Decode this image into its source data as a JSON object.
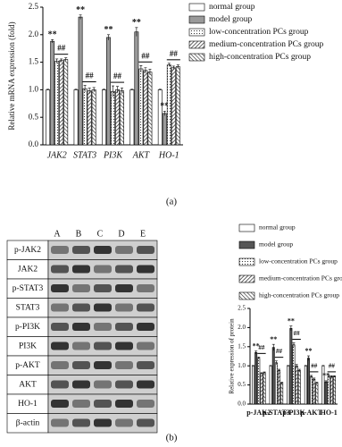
{
  "chart_data": [
    {
      "type": "bar",
      "y_label": "Relative mRNA expression (fold)",
      "categories": [
        "JAK2",
        "STAT3",
        "PI3K",
        "AKT",
        "HO-1"
      ],
      "category_style": "italic",
      "ylim": [
        0,
        2.5
      ],
      "yticks": [
        {
          "value": 0,
          "label": "0.0"
        },
        0.5,
        {
          "value": 1,
          "label": "1.0"
        },
        1.5,
        {
          "value": 2,
          "label": "2.0"
        },
        2.5
      ],
      "series": [
        {
          "name": "normal group",
          "color": "#ffffff",
          "pattern": "solid",
          "values": [
            1,
            1,
            1,
            1,
            1
          ],
          "errors": [
            0.01,
            0.01,
            0.01,
            0.01,
            0.01
          ]
        },
        {
          "name": "model group",
          "color": "#9a9a9a",
          "pattern": "solid",
          "values": [
            1.88,
            2.32,
            1.95,
            2.05,
            0.57
          ],
          "errors": [
            0.03,
            0.04,
            0.05,
            0.08,
            0.04
          ],
          "significance": [
            "**",
            "**",
            "**",
            "**",
            "**"
          ]
        },
        {
          "name": "low-concentration PCs group",
          "color": "#ffffff",
          "pattern": "dots",
          "values": [
            1.52,
            1.02,
            0.97,
            1.38,
            1.45
          ],
          "errors": [
            0.04,
            0.06,
            0.1,
            0.06,
            0.03
          ]
        },
        {
          "name": "medium-concentration PCs group",
          "color": "#ffffff",
          "pattern": "hatch",
          "values": [
            1.53,
            0.98,
            1.0,
            1.35,
            1.4
          ],
          "errors": [
            0.03,
            0.05,
            0.06,
            0.05,
            0.03
          ]
        },
        {
          "name": "high-concentration PCs group",
          "color": "#ffffff",
          "pattern": "crosshatch",
          "values": [
            1.55,
            1.0,
            0.98,
            1.32,
            1.42
          ],
          "errors": [
            0.03,
            0.04,
            0.05,
            0.05,
            0.03
          ]
        }
      ],
      "group_annotations": [
        "##",
        "##",
        "##",
        "##",
        "##"
      ]
    },
    {
      "type": "bar",
      "y_label": "Relative expression of protein",
      "categories": [
        "p-JAK2",
        "p-STAT3",
        "p-PI3K",
        "p-AKT",
        "HO-1"
      ],
      "category_style": "bold",
      "ylim": [
        0,
        2.5
      ],
      "yticks": [
        {
          "value": 0,
          "label": "0.0"
        },
        0.5,
        {
          "value": 1,
          "label": "1.0"
        },
        1.5,
        {
          "value": 2,
          "label": "2.0"
        },
        2.5
      ],
      "series": [
        {
          "name": "normal group",
          "color": "#ffffff",
          "pattern": "solid",
          "values": [
            1,
            1,
            1,
            1,
            1
          ],
          "errors": [
            0.01,
            0.01,
            0.01,
            0.01,
            0.01
          ]
        },
        {
          "name": "model group",
          "color": "#555555",
          "pattern": "solid",
          "values": [
            1.35,
            1.48,
            1.98,
            1.2,
            0.58
          ],
          "errors": [
            0.04,
            0.08,
            0.06,
            0.06,
            0.03
          ],
          "significance": [
            "**",
            "**",
            "**",
            "**",
            "**"
          ]
        },
        {
          "name": "low-concentration PCs group",
          "color": "#ffffff",
          "pattern": "dots",
          "values": [
            1.2,
            1.08,
            1.55,
            0.72,
            0.72
          ],
          "errors": [
            0.03,
            0.05,
            0.05,
            0.03,
            0.03
          ]
        },
        {
          "name": "medium-concentration PCs group",
          "color": "#ffffff",
          "pattern": "hatch",
          "values": [
            0.8,
            0.88,
            1.0,
            0.65,
            0.72
          ],
          "errors": [
            0.02,
            0.03,
            0.04,
            0.03,
            0.02
          ]
        },
        {
          "name": "high-concentration PCs group",
          "color": "#ffffff",
          "pattern": "crosshatch",
          "values": [
            0.82,
            0.55,
            0.88,
            0.55,
            0.72
          ],
          "errors": [
            0.02,
            0.02,
            0.03,
            0.02,
            0.02
          ]
        }
      ],
      "group_annotations": [
        "##",
        "##",
        "##",
        "##",
        "##"
      ]
    }
  ],
  "blot": {
    "lanes": [
      "A",
      "B",
      "C",
      "D",
      "E"
    ],
    "rows": [
      "p-JAK2",
      "JAK2",
      "p-STAT3",
      "STAT3",
      "p-PI3K",
      "PI3K",
      "p-AKT",
      "AKT",
      "HO-1",
      "β-actin"
    ]
  },
  "captions": [
    "(a)",
    "(b)"
  ]
}
